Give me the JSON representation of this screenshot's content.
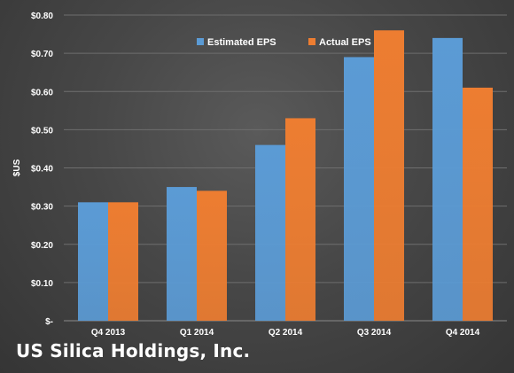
{
  "footer": {
    "company": "US Silica Holdings, Inc."
  },
  "colors": {
    "estimated": "#5b9bd5",
    "actual": "#ed7d31",
    "text": "#ffffff",
    "grid": "#6e6e6e"
  },
  "chart_data": {
    "type": "bar",
    "title": "",
    "xlabel": "",
    "ylabel": "$US",
    "categories": [
      "Q4 2013",
      "Q1 2014",
      "Q2 2014",
      "Q3 2014",
      "Q4 2014"
    ],
    "series": [
      {
        "name": "Estimated EPS",
        "values": [
          0.31,
          0.35,
          0.46,
          0.69,
          0.74
        ]
      },
      {
        "name": "Actual EPS",
        "values": [
          0.31,
          0.34,
          0.53,
          0.76,
          0.61
        ]
      }
    ],
    "ylim": [
      0,
      0.8
    ],
    "yticks": [
      0,
      0.1,
      0.2,
      0.3,
      0.4,
      0.5,
      0.6,
      0.7,
      0.8
    ],
    "ytick_labels": [
      "$-",
      "$0.10",
      "$0.20",
      "$0.30",
      "$0.40",
      "$0.50",
      "$0.60",
      "$0.70",
      "$0.80"
    ],
    "grid": true,
    "legend": "top-center"
  }
}
